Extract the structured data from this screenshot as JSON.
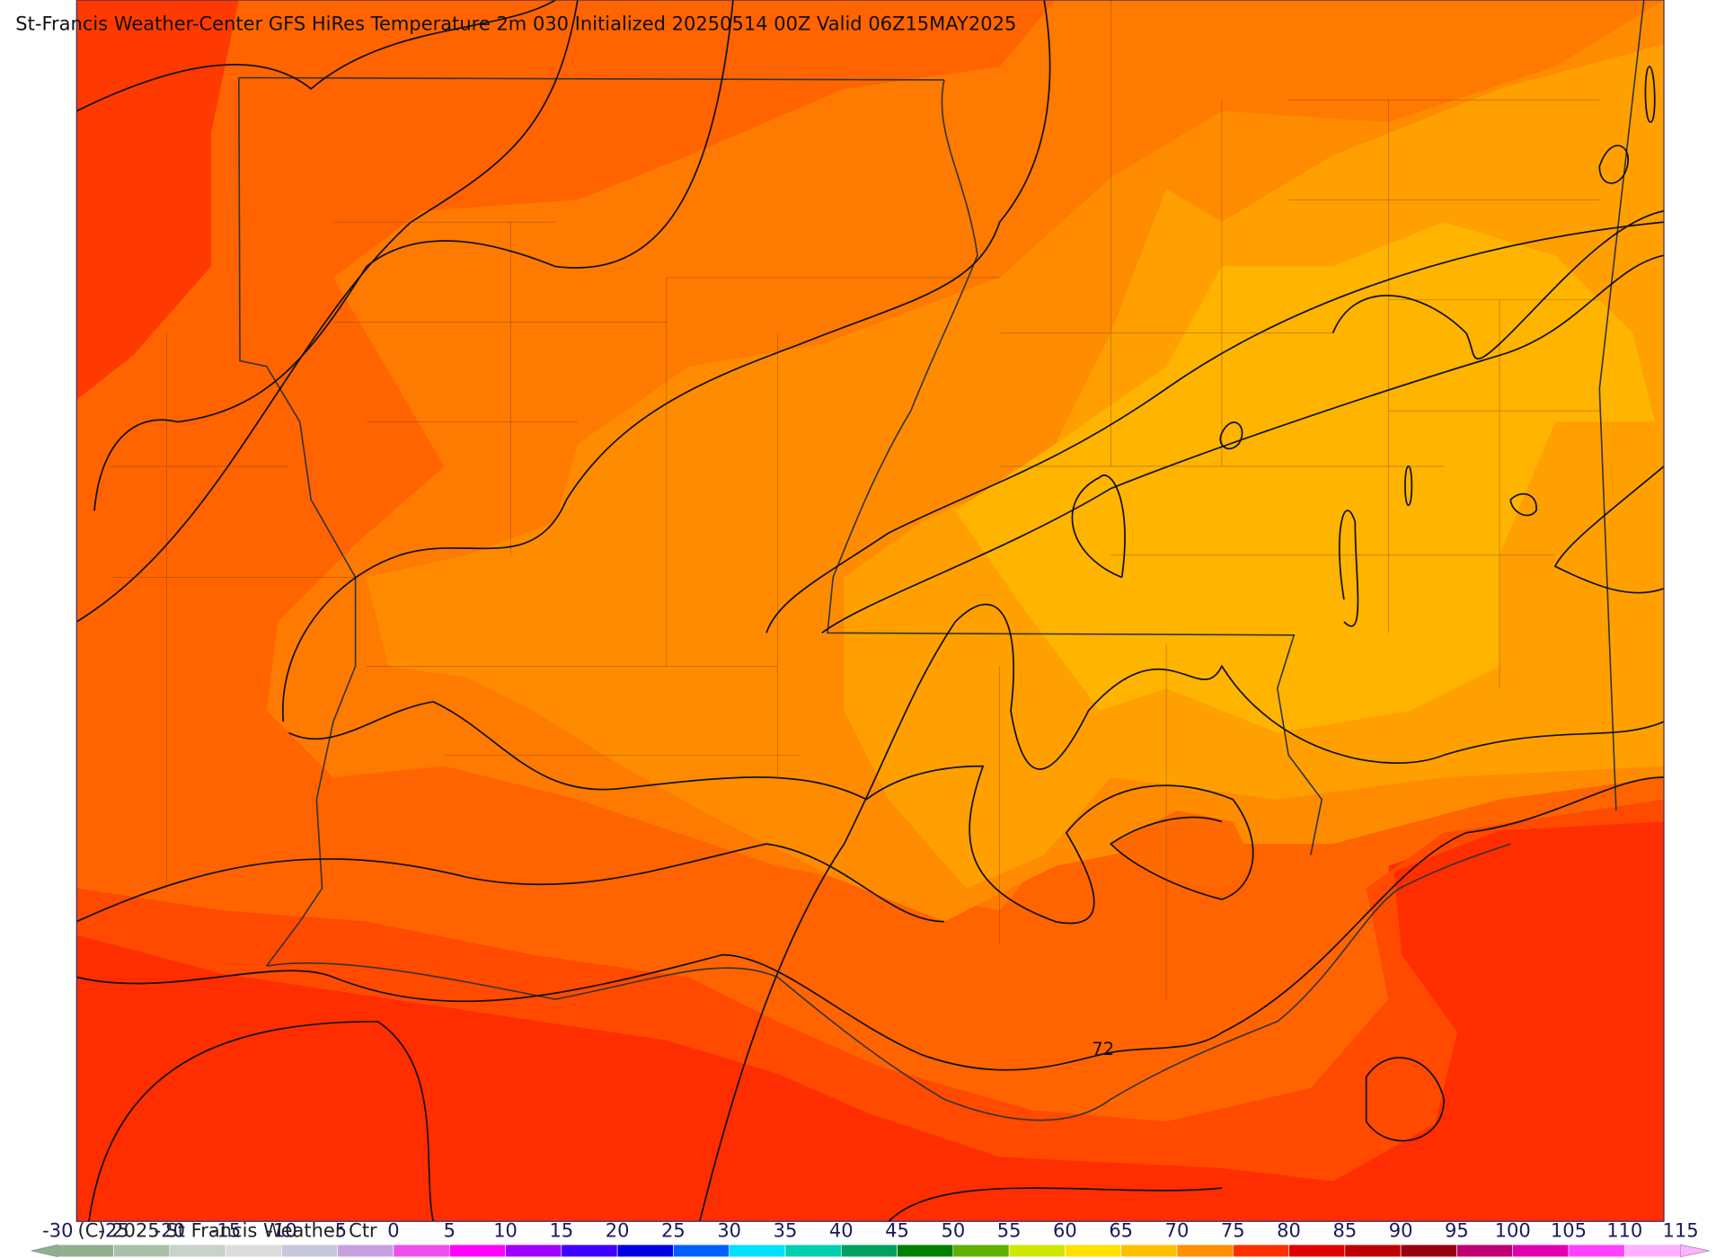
{
  "header": {
    "title": "St-Francis Weather-Center GFS HiRes Temperature 2m  030 Initialized 20250514 00Z Valid 06Z15MAY2025"
  },
  "map": {
    "contour_labels": [
      "72"
    ]
  },
  "footer": {
    "copyright": "(C) 2025 St Francis Weather Ctr"
  },
  "colorbar": {
    "ticks": [
      -30,
      -25,
      -20,
      -15,
      -10,
      -5,
      0,
      5,
      10,
      15,
      20,
      25,
      30,
      35,
      40,
      45,
      50,
      55,
      60,
      65,
      70,
      75,
      80,
      85,
      90,
      95,
      100,
      105,
      110,
      115
    ],
    "colors": [
      "#8fb08f",
      "#a9c0a9",
      "#c8d2c8",
      "#dcdcdc",
      "#c8c8dc",
      "#c8a0e0",
      "#ee50ee",
      "#ff00ff",
      "#a000ff",
      "#4000ff",
      "#0000e0",
      "#0060ff",
      "#00e0ff",
      "#00d0b0",
      "#00a060",
      "#008000",
      "#60b000",
      "#d0e800",
      "#ffe000",
      "#ffc000",
      "#ff9000",
      "#ff3000",
      "#e00000",
      "#c00000",
      "#980010",
      "#c00070",
      "#e000b0",
      "#ff40ff",
      "#ffb0ff"
    ]
  }
}
